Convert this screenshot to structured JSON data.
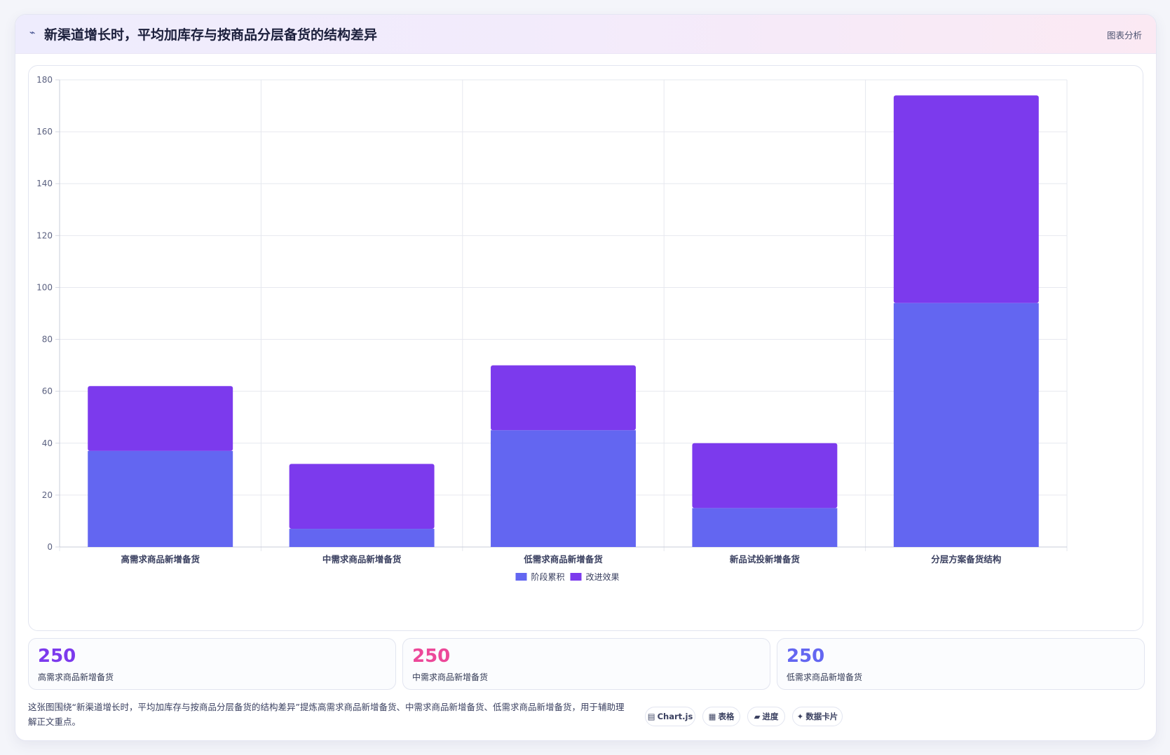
{
  "header": {
    "icon": "chart-line-icon",
    "title": "新渠道增长时，平均加库存与按商品分层备货的结构差异",
    "right_label": "图表分析"
  },
  "chart_data": {
    "type": "bar",
    "stacked": true,
    "categories": [
      "高需求商品新增备货",
      "中需求商品新增备货",
      "低需求商品新增备货",
      "新品试投新增备货",
      "分层方案备货结构"
    ],
    "series": [
      {
        "name": "阶段累积",
        "color": "#6366f1",
        "values": [
          37,
          7,
          45,
          15,
          94
        ]
      },
      {
        "name": "改进效果",
        "color": "#7c3aed",
        "values": [
          25,
          25,
          25,
          25,
          80
        ]
      }
    ],
    "ylim": [
      0,
      180
    ],
    "yticks": [
      0,
      20,
      40,
      60,
      80,
      100,
      120,
      140,
      160,
      180
    ],
    "grid": true,
    "legend": "bottom"
  },
  "stats": [
    {
      "value": "250",
      "label": "高需求商品新增备货",
      "color": "#7c3aed"
    },
    {
      "value": "250",
      "label": "中需求商品新增备货",
      "color": "#ec4899"
    },
    {
      "value": "250",
      "label": "低需求商品新增备货",
      "color": "#6366f1"
    }
  ],
  "footer": {
    "description": "这张图围绕“新渠道增长时，平均加库存与按商品分层备货的结构差异”提炼高需求商品新增备货、中需求商品新增备货、低需求商品新增备货，用于辅助理解正文重点。",
    "chips": [
      {
        "icon": "chart-icon",
        "glyph": "▤",
        "label": "Chart.js"
      },
      {
        "icon": "table-icon",
        "glyph": "▦",
        "label": "表格"
      },
      {
        "icon": "progress-icon",
        "glyph": "▰",
        "label": "进度"
      },
      {
        "icon": "card-icon",
        "glyph": "✦",
        "label": "数据卡片"
      }
    ]
  }
}
